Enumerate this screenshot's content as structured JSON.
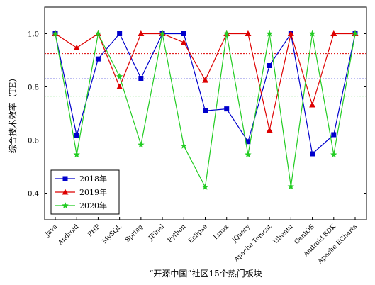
{
  "chart_data": {
    "type": "line",
    "title": "",
    "xlabel": "“开源中国”社区15个热门板块",
    "ylabel": "综合技术效率（TE）",
    "ylim": [
      0.3,
      1.1
    ],
    "yticks": [
      0.4,
      0.6,
      0.8,
      1.0
    ],
    "ytick_labels": [
      "0.4",
      "0.6",
      "0.8",
      "1.0"
    ],
    "categories": [
      "Java",
      "Android",
      "PHP",
      "MySQL",
      "Spring",
      "JFinal",
      "Python",
      "Eclipse",
      "Linux",
      "jQuery",
      "Apache Tomcat",
      "Ubuntu",
      "CentOS",
      "Android SDK",
      "Apache ECharts"
    ],
    "series": [
      {
        "name": "2018年",
        "color": "#0000cc",
        "marker": "square",
        "values": [
          1.0,
          0.617,
          0.905,
          1.0,
          0.832,
          1.0,
          1.0,
          0.71,
          0.717,
          0.594,
          0.88,
          1.0,
          0.548,
          0.62,
          1.0
        ]
      },
      {
        "name": "2019年",
        "color": "#dd0000",
        "marker": "triangle",
        "values": [
          1.0,
          0.947,
          1.0,
          0.8,
          1.0,
          1.0,
          0.967,
          0.825,
          1.0,
          1.0,
          0.637,
          1.0,
          0.732,
          1.0,
          1.0
        ]
      },
      {
        "name": "2020年",
        "color": "#22cc22",
        "marker": "star",
        "values": [
          1.0,
          0.545,
          1.0,
          0.839,
          0.582,
          1.0,
          0.578,
          0.423,
          1.0,
          0.545,
          1.0,
          0.425,
          1.0,
          0.545,
          1.0
        ]
      }
    ],
    "reference_lines": [
      {
        "color": "#dd0000",
        "value": 0.925
      },
      {
        "color": "#0000cc",
        "value": 0.83
      },
      {
        "color": "#22cc22",
        "value": 0.765
      }
    ],
    "legend": {
      "position": "bottom-left"
    },
    "grid": false
  }
}
